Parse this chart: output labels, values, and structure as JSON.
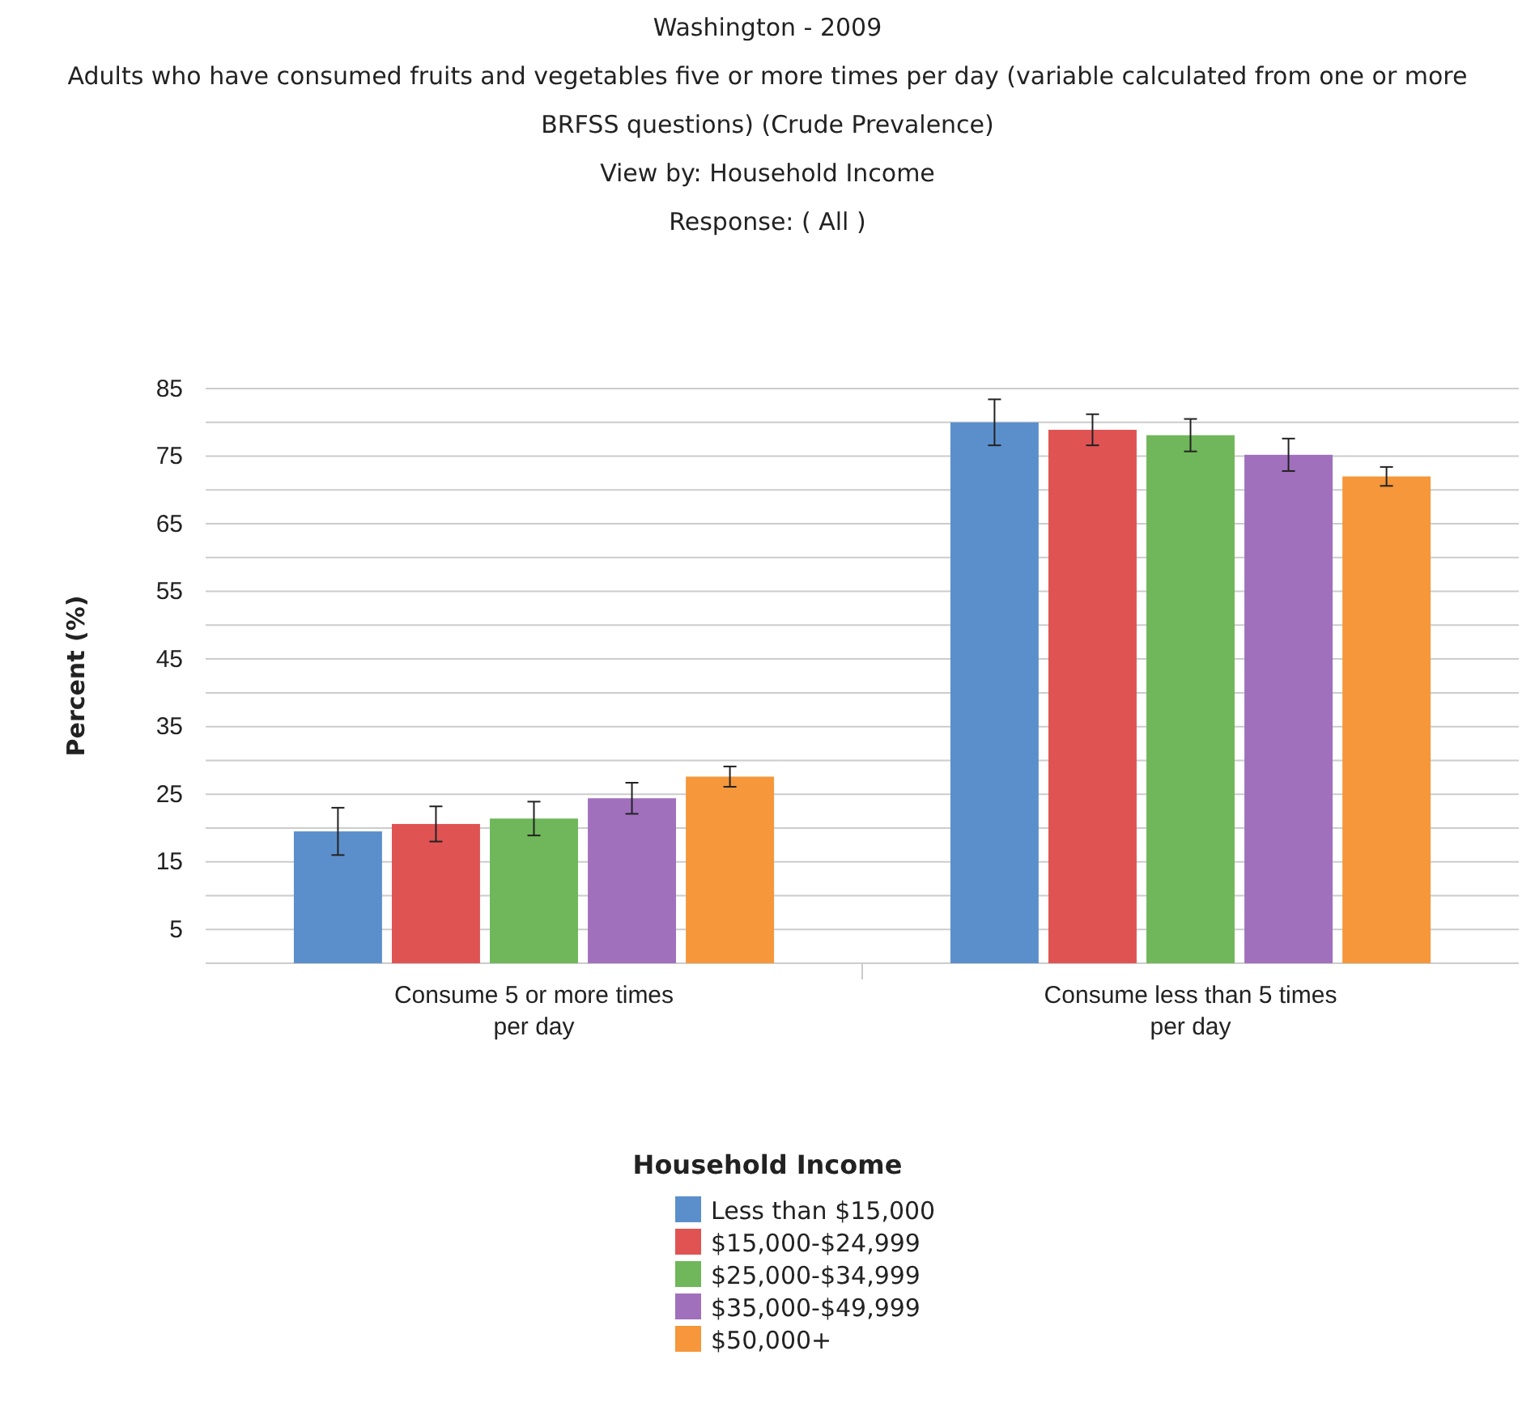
{
  "chart_data": {
    "type": "bar",
    "title": "Washington - 2009",
    "subtitle": "Adults who have consumed fruits and vegetables five or more times per day (variable calculated from one or more BRFSS questions) (Crude Prevalence)\nView by: Household Income\nResponse: ( All )",
    "ylabel": "Percent (%)",
    "legend_title": "Household Income",
    "categories": [
      "Consume 5 or more times per day",
      "Consume less than 5 times per day"
    ],
    "series": [
      {
        "name": "Less than $15,000",
        "color": "#5b8fcb",
        "values": [
          19.5,
          80.0
        ],
        "errors": [
          3.5,
          3.4
        ]
      },
      {
        "name": "$15,000-$24,999",
        "color": "#e05353",
        "values": [
          20.6,
          78.9
        ],
        "errors": [
          2.6,
          2.3
        ]
      },
      {
        "name": "$25,000-$34,999",
        "color": "#6fb75a",
        "values": [
          21.4,
          78.1
        ],
        "errors": [
          2.5,
          2.4
        ]
      },
      {
        "name": "$35,000-$49,999",
        "color": "#a070bd",
        "values": [
          24.4,
          75.2
        ],
        "errors": [
          2.3,
          2.4
        ]
      },
      {
        "name": "$50,000+",
        "color": "#f5973a",
        "values": [
          27.6,
          72.0
        ],
        "errors": [
          1.5,
          1.4
        ]
      }
    ],
    "ylim": [
      0,
      85
    ],
    "yticks": [
      {
        "value": 0,
        "label": null
      },
      5,
      {
        "value": 10,
        "label": null
      },
      15,
      {
        "value": 20,
        "label": null
      },
      25,
      {
        "value": 30,
        "label": null
      },
      35,
      {
        "value": 40,
        "label": null
      },
      45,
      {
        "value": 50,
        "label": null
      },
      55,
      {
        "value": 60,
        "label": null
      },
      65,
      {
        "value": 70,
        "label": null
      },
      75,
      {
        "value": 80,
        "label": null
      },
      85
    ],
    "grid": "y",
    "legend": "bottom"
  }
}
